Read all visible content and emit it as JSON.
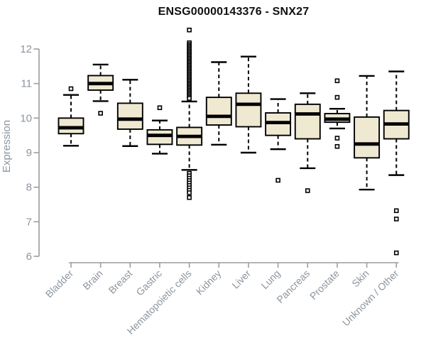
{
  "chart_data": {
    "type": "boxplot",
    "title": "ENSG00000143376 - SNX27",
    "ylabel": "Expression",
    "xlabel": "",
    "ylim": [
      6,
      12
    ],
    "yticks": [
      6,
      7,
      8,
      9,
      10,
      11,
      12
    ],
    "grid": false,
    "legend": "none",
    "categories": [
      "Bladder",
      "Brain",
      "Breast",
      "Gastric",
      "Hematopoietic cells",
      "Kidney",
      "Liver",
      "Lung",
      "Pancreas",
      "Prostate",
      "Skin",
      "Unknown / Other"
    ],
    "series": [
      {
        "name": "Bladder",
        "whisker_low": 9.2,
        "q1": 9.55,
        "median": 9.72,
        "q3": 10.0,
        "whisker_high": 10.67,
        "outliers": [
          10.85
        ]
      },
      {
        "name": "Brain",
        "whisker_low": 10.49,
        "q1": 10.81,
        "median": 11.0,
        "q3": 11.23,
        "whisker_high": 11.55,
        "outliers": [
          10.14
        ]
      },
      {
        "name": "Breast",
        "whisker_low": 9.19,
        "q1": 9.68,
        "median": 9.97,
        "q3": 10.43,
        "whisker_high": 11.11,
        "outliers": []
      },
      {
        "name": "Gastric",
        "whisker_low": 8.97,
        "q1": 9.24,
        "median": 9.5,
        "q3": 9.66,
        "whisker_high": 9.93,
        "outliers": [
          10.3
        ]
      },
      {
        "name": "Hematopoietic cells",
        "whisker_low": 8.5,
        "q1": 9.22,
        "median": 9.47,
        "q3": 9.73,
        "whisker_high": 10.48,
        "outliers": [
          12.55,
          12.18,
          12.13,
          12.09,
          12.05,
          12.01,
          11.97,
          11.93,
          11.89,
          11.85,
          11.81,
          11.77,
          11.73,
          11.69,
          11.65,
          11.61,
          11.57,
          11.53,
          11.49,
          11.45,
          11.41,
          11.37,
          11.33,
          11.29,
          11.25,
          11.21,
          11.17,
          11.13,
          11.09,
          11.05,
          11.01,
          10.97,
          10.93,
          10.89,
          10.85,
          10.81,
          10.77,
          10.73,
          10.69,
          10.65,
          10.61,
          10.57,
          8.4,
          8.33,
          8.26,
          8.19,
          8.12,
          8.05,
          7.98,
          7.91,
          7.84,
          7.7
        ]
      },
      {
        "name": "Kidney",
        "whisker_low": 9.23,
        "q1": 9.8,
        "median": 10.05,
        "q3": 10.6,
        "whisker_high": 11.62,
        "outliers": []
      },
      {
        "name": "Liver",
        "whisker_low": 9.0,
        "q1": 9.75,
        "median": 10.4,
        "q3": 10.72,
        "whisker_high": 11.78,
        "outliers": []
      },
      {
        "name": "Lung",
        "whisker_low": 9.1,
        "q1": 9.5,
        "median": 9.87,
        "q3": 10.15,
        "whisker_high": 10.55,
        "outliers": [
          8.2
        ]
      },
      {
        "name": "Pancreas",
        "whisker_low": 8.55,
        "q1": 9.4,
        "median": 10.12,
        "q3": 10.4,
        "whisker_high": 10.72,
        "outliers": [
          7.9
        ]
      },
      {
        "name": "Prostate",
        "whisker_low": 9.7,
        "q1": 9.88,
        "median": 9.97,
        "q3": 10.13,
        "whisker_high": 10.27,
        "outliers": [
          11.08,
          10.6,
          9.42,
          9.18
        ]
      },
      {
        "name": "Skin",
        "whisker_low": 7.93,
        "q1": 8.85,
        "median": 9.25,
        "q3": 10.03,
        "whisker_high": 11.22,
        "outliers": []
      },
      {
        "name": "Unknown / Other",
        "whisker_low": 8.35,
        "q1": 9.4,
        "median": 9.83,
        "q3": 10.22,
        "whisker_high": 11.35,
        "outliers": [
          7.32,
          7.08,
          6.1
        ]
      }
    ],
    "colors": {
      "box_fill": "#EFE9D2",
      "box_stroke": "#000000",
      "median": "#000000",
      "whisker": "#000000",
      "outlier_stroke": "#000000",
      "outlier_fill": "#ffffff",
      "axis_line": "#9C9C9C",
      "axis_text": "#8C959F",
      "title_text": "#111111"
    }
  }
}
